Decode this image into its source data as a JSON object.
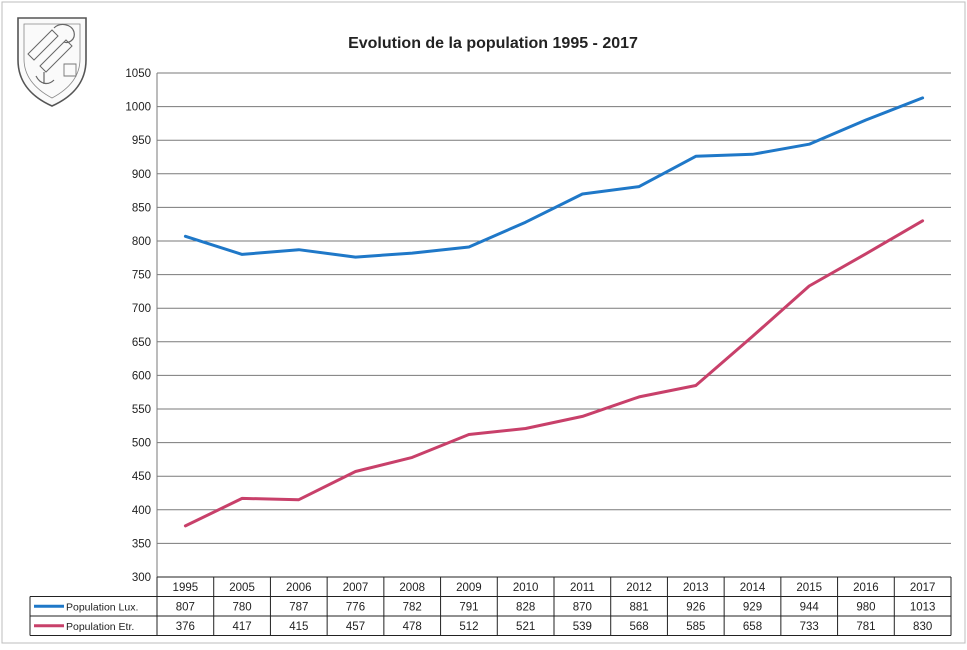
{
  "chart_data": {
    "type": "line",
    "title": "Evolution de la population 1995 - 2017",
    "categories": [
      "1995",
      "2005",
      "2006",
      "2007",
      "2008",
      "2009",
      "2010",
      "2011",
      "2012",
      "2013",
      "2014",
      "2015",
      "2016",
      "2017"
    ],
    "series": [
      {
        "name": "Population Lux.",
        "color": "#1f78c8",
        "values": [
          807,
          780,
          787,
          776,
          782,
          791,
          828,
          870,
          881,
          926,
          929,
          944,
          980,
          1013
        ]
      },
      {
        "name": "Population Etr.",
        "color": "#c8406a",
        "values": [
          376,
          417,
          415,
          457,
          478,
          512,
          521,
          539,
          568,
          585,
          658,
          733,
          781,
          830
        ]
      }
    ],
    "ylim": [
      300,
      1050
    ],
    "yticks": [
      300,
      350,
      400,
      450,
      500,
      550,
      600,
      650,
      700,
      750,
      800,
      850,
      900,
      950,
      1000,
      1050
    ],
    "grid": true,
    "legend": "data-table-below",
    "logo": {
      "icon": "coat-of-arms-icon",
      "description": "municipal coat of arms shield"
    }
  }
}
